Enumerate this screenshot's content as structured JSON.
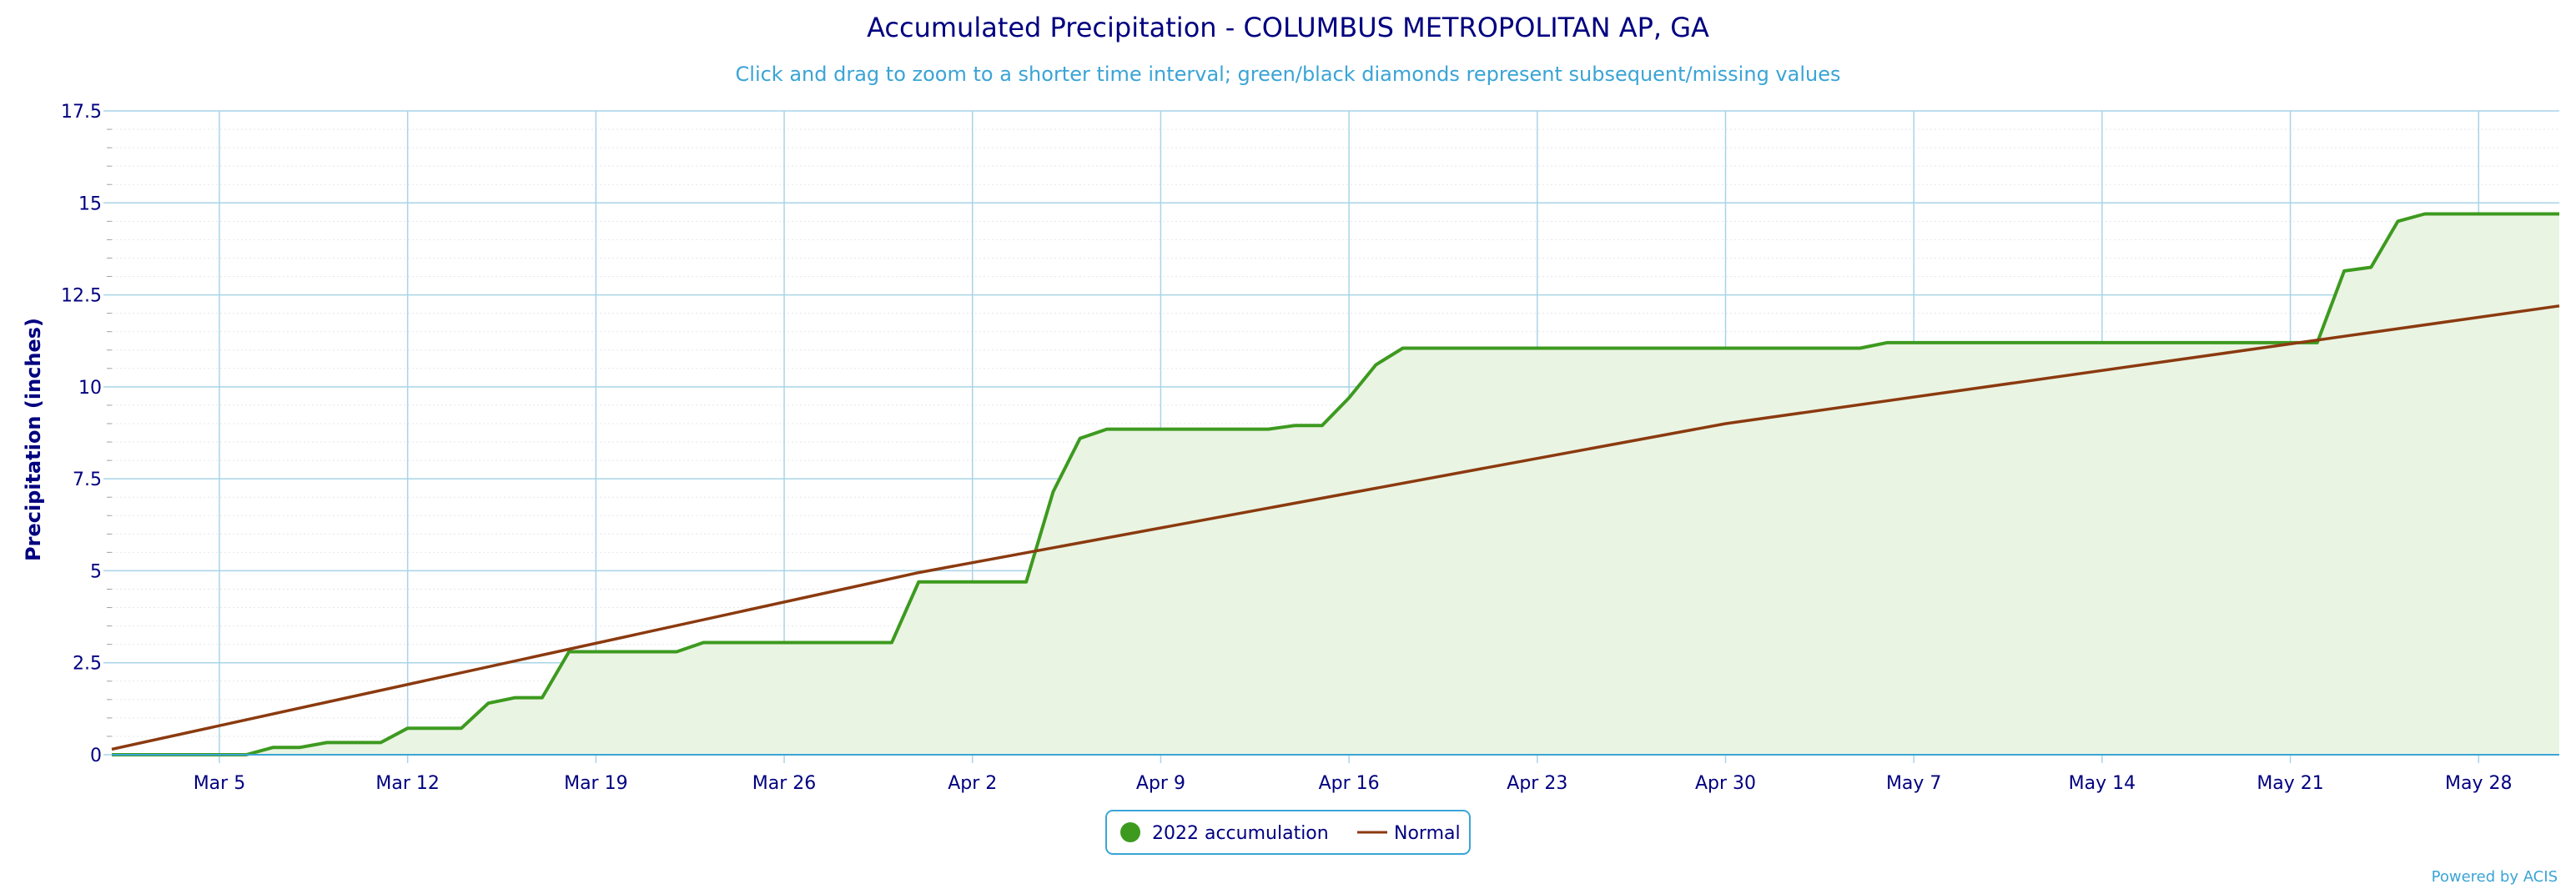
{
  "chart_data": {
    "type": "area",
    "title": "Accumulated Precipitation - COLUMBUS METROPOLITAN AP, GA",
    "subtitle": "Click and drag to zoom to a shorter time interval; green/black diamonds represent subsequent/missing values",
    "ylabel": "Precipitation (inches)",
    "xlabel": "",
    "ylim": [
      0,
      17.5
    ],
    "y_ticks": [
      "0",
      "2.5",
      "5",
      "7.5",
      "10",
      "12.5",
      "15",
      "17.5"
    ],
    "x_range": [
      "2022-03-01",
      "2022-05-31"
    ],
    "x_ticks": [
      {
        "date": "2022-03-05",
        "label": "Mar 5"
      },
      {
        "date": "2022-03-12",
        "label": "Mar 12"
      },
      {
        "date": "2022-03-19",
        "label": "Mar 19"
      },
      {
        "date": "2022-03-26",
        "label": "Mar 26"
      },
      {
        "date": "2022-04-02",
        "label": "Apr 2"
      },
      {
        "date": "2022-04-09",
        "label": "Apr 9"
      },
      {
        "date": "2022-04-16",
        "label": "Apr 16"
      },
      {
        "date": "2022-04-23",
        "label": "Apr 23"
      },
      {
        "date": "2022-04-30",
        "label": "Apr 30"
      },
      {
        "date": "2022-05-07",
        "label": "May 7"
      },
      {
        "date": "2022-05-14",
        "label": "May 14"
      },
      {
        "date": "2022-05-21",
        "label": "May 21"
      },
      {
        "date": "2022-05-28",
        "label": "May 28"
      }
    ],
    "grid": true,
    "legend_position": "bottom-center",
    "series": [
      {
        "name": "2022 accumulation",
        "color": "#3d9a1f",
        "fill": "#eaf4e3",
        "marker": "circle",
        "points": [
          [
            "2022-03-01",
            0.0
          ],
          [
            "2022-03-06",
            0.0
          ],
          [
            "2022-03-07",
            0.2
          ],
          [
            "2022-03-08",
            0.2
          ],
          [
            "2022-03-09",
            0.33
          ],
          [
            "2022-03-11",
            0.33
          ],
          [
            "2022-03-12",
            0.72
          ],
          [
            "2022-03-14",
            0.72
          ],
          [
            "2022-03-15",
            1.4
          ],
          [
            "2022-03-16",
            1.55
          ],
          [
            "2022-03-17",
            1.55
          ],
          [
            "2022-03-18",
            2.8
          ],
          [
            "2022-03-22",
            2.8
          ],
          [
            "2022-03-23",
            3.05
          ],
          [
            "2022-03-30",
            3.05
          ],
          [
            "2022-03-31",
            4.7
          ],
          [
            "2022-04-04",
            4.7
          ],
          [
            "2022-04-05",
            7.15
          ],
          [
            "2022-04-06",
            8.6
          ],
          [
            "2022-04-07",
            8.85
          ],
          [
            "2022-04-13",
            8.85
          ],
          [
            "2022-04-14",
            8.95
          ],
          [
            "2022-04-15",
            8.95
          ],
          [
            "2022-04-16",
            9.7
          ],
          [
            "2022-04-17",
            10.6
          ],
          [
            "2022-04-18",
            11.05
          ],
          [
            "2022-04-30",
            11.05
          ],
          [
            "2022-05-05",
            11.05
          ],
          [
            "2022-05-06",
            11.2
          ],
          [
            "2022-05-22",
            11.2
          ],
          [
            "2022-05-23",
            13.15
          ],
          [
            "2022-05-24",
            13.25
          ],
          [
            "2022-05-25",
            14.5
          ],
          [
            "2022-05-26",
            14.7
          ],
          [
            "2022-05-31",
            14.7
          ]
        ]
      },
      {
        "name": "Normal",
        "color": "#8b3a0f",
        "marker": "line",
        "points": [
          [
            "2022-03-01",
            0.15
          ],
          [
            "2022-03-31",
            4.95
          ],
          [
            "2022-04-30",
            9.0
          ],
          [
            "2022-05-31",
            12.2
          ]
        ]
      }
    ],
    "credit": "Powered by ACIS"
  }
}
